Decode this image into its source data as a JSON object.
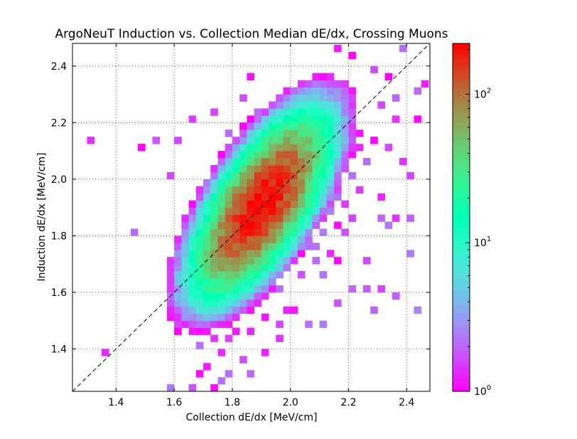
{
  "chart_data": {
    "type": "heatmap",
    "title": "ArgoNeuT Induction vs. Collection Median dE/dx, Crossing Muons",
    "xlabel": "Collection dE/dx [MeV/cm]",
    "ylabel": "Induction dE/dx [MeV/cm]",
    "xlim": [
      1.25,
      2.48
    ],
    "ylim": [
      1.25,
      2.48
    ],
    "xticks": [
      1.4,
      1.6,
      1.8,
      2.0,
      2.2,
      2.4
    ],
    "yticks": [
      1.4,
      1.6,
      1.8,
      2.0,
      2.2,
      2.4
    ],
    "xtick_labels": [
      "1.4",
      "1.6",
      "1.8",
      "2.0",
      "2.2",
      "2.4"
    ],
    "ytick_labels": [
      "1.4",
      "1.6",
      "1.8",
      "2.0",
      "2.2",
      "2.4"
    ],
    "grid": true,
    "bin_width": 0.025,
    "color_scale": "log",
    "colormap": "rainbow",
    "colorbar": {
      "min": 1,
      "max": 220,
      "ticks": [
        1,
        10,
        100
      ],
      "tick_labels": [
        "10^0",
        "10^1",
        "10^2"
      ]
    },
    "reference_line": {
      "style": "dashed",
      "color": "#000000",
      "slope": 1,
      "intercept": 0
    },
    "peak": {
      "x": 1.9,
      "y": 1.91,
      "count": 220
    },
    "core_spread": {
      "major": 0.16,
      "minor": 0.065,
      "angle_deg": 58
    },
    "scattered_bins": [
      [
        1.31,
        2.14
      ],
      [
        1.36,
        1.39
      ],
      [
        1.46,
        1.81
      ],
      [
        1.49,
        2.11
      ],
      [
        1.54,
        2.14
      ],
      [
        1.59,
        2.01
      ],
      [
        1.61,
        2.14
      ],
      [
        1.64,
        1.79
      ],
      [
        1.66,
        1.64
      ],
      [
        1.61,
        1.49
      ],
      [
        1.59,
        1.26
      ],
      [
        1.66,
        1.26
      ],
      [
        1.69,
        1.21
      ],
      [
        1.66,
        2.21
      ],
      [
        1.74,
        2.24
      ],
      [
        1.79,
        2.16
      ],
      [
        1.81,
        2.06
      ],
      [
        1.84,
        2.29
      ],
      [
        1.86,
        2.36
      ],
      [
        1.89,
        2.24
      ],
      [
        1.94,
        2.16
      ],
      [
        2.01,
        2.19
      ],
      [
        2.06,
        2.31
      ],
      [
        2.11,
        2.36
      ],
      [
        2.16,
        2.46
      ],
      [
        2.21,
        2.44
      ],
      [
        2.29,
        2.39
      ],
      [
        2.34,
        2.36
      ],
      [
        2.39,
        2.46
      ],
      [
        2.44,
        2.31
      ],
      [
        2.46,
        2.34
      ],
      [
        2.36,
        2.29
      ],
      [
        2.31,
        2.26
      ],
      [
        2.36,
        2.21
      ],
      [
        2.44,
        2.21
      ],
      [
        2.39,
        2.06
      ],
      [
        2.41,
        2.01
      ],
      [
        2.34,
        2.11
      ],
      [
        2.24,
        2.16
      ],
      [
        2.29,
        2.14
      ],
      [
        2.26,
        2.06
      ],
      [
        2.31,
        1.94
      ],
      [
        2.36,
        1.86
      ],
      [
        2.41,
        1.86
      ],
      [
        2.31,
        1.86
      ],
      [
        2.34,
        1.84
      ],
      [
        2.41,
        1.74
      ],
      [
        2.26,
        1.71
      ],
      [
        2.31,
        1.61
      ],
      [
        2.36,
        1.59
      ],
      [
        2.29,
        1.54
      ],
      [
        2.44,
        1.54
      ],
      [
        2.16,
        1.56
      ],
      [
        2.11,
        1.49
      ],
      [
        2.21,
        1.61
      ],
      [
        2.26,
        1.61
      ],
      [
        2.16,
        1.71
      ],
      [
        2.01,
        1.54
      ],
      [
        2.06,
        1.49
      ],
      [
        1.96,
        1.49
      ],
      [
        1.91,
        1.51
      ],
      [
        1.86,
        1.46
      ],
      [
        1.91,
        1.39
      ],
      [
        1.84,
        1.36
      ],
      [
        1.86,
        1.31
      ],
      [
        1.76,
        1.39
      ],
      [
        1.76,
        1.29
      ],
      [
        1.71,
        1.34
      ],
      [
        1.69,
        1.31
      ],
      [
        1.74,
        1.26
      ],
      [
        1.79,
        1.31
      ],
      [
        1.69,
        1.69
      ],
      [
        1.96,
        1.61
      ],
      [
        2.09,
        1.71
      ],
      [
        2.04,
        1.66
      ],
      [
        2.14,
        1.74
      ],
      [
        1.99,
        1.69
      ],
      [
        2.19,
        1.81
      ],
      [
        2.21,
        1.86
      ],
      [
        2.19,
        1.91
      ],
      [
        2.24,
        1.96
      ],
      [
        2.21,
        2.01
      ],
      [
        2.16,
        1.99
      ],
      [
        2.14,
        2.04
      ],
      [
        2.24,
        2.11
      ],
      [
        2.21,
        2.09
      ],
      [
        2.19,
        2.24
      ],
      [
        2.16,
        2.19
      ],
      [
        2.11,
        2.21
      ],
      [
        2.06,
        2.21
      ],
      [
        2.01,
        2.11
      ],
      [
        2.04,
        2.19
      ],
      [
        2.14,
        2.11
      ],
      [
        2.04,
        1.66
      ],
      [
        1.99,
        1.54
      ],
      [
        1.94,
        1.61
      ],
      [
        1.81,
        1.46
      ],
      [
        1.79,
        1.44
      ],
      [
        1.96,
        1.44
      ],
      [
        1.71,
        1.46
      ],
      [
        1.64,
        1.54
      ],
      [
        1.66,
        1.51
      ],
      [
        1.69,
        1.56
      ],
      [
        1.71,
        1.54
      ],
      [
        1.74,
        1.44
      ],
      [
        1.69,
        1.41
      ],
      [
        1.66,
        1.46
      ],
      [
        1.69,
        1.74
      ],
      [
        1.71,
        1.69
      ],
      [
        1.76,
        1.66
      ],
      [
        1.79,
        1.71
      ],
      [
        2.06,
        1.79
      ],
      [
        2.09,
        1.76
      ],
      [
        2.11,
        1.81
      ],
      [
        2.11,
        1.66
      ],
      [
        2.06,
        1.76
      ],
      [
        2.16,
        1.84
      ],
      [
        2.16,
        1.94
      ],
      [
        2.14,
        1.89
      ],
      [
        2.19,
        2.06
      ],
      [
        1.74,
        1.94
      ],
      [
        1.71,
        1.96
      ],
      [
        1.76,
        2.01
      ],
      [
        1.79,
        2.04
      ],
      [
        1.81,
        2.11
      ],
      [
        1.84,
        2.09
      ],
      [
        1.86,
        2.11
      ],
      [
        1.89,
        2.14
      ],
      [
        1.91,
        2.14
      ],
      [
        1.96,
        2.11
      ],
      [
        1.99,
        2.14
      ],
      [
        2.09,
        2.16
      ],
      [
        2.04,
        2.24
      ],
      [
        2.01,
        2.21
      ],
      [
        1.64,
        1.59
      ],
      [
        1.74,
        1.61
      ],
      [
        1.61,
        1.79
      ],
      [
        1.71,
        1.81
      ]
    ]
  }
}
